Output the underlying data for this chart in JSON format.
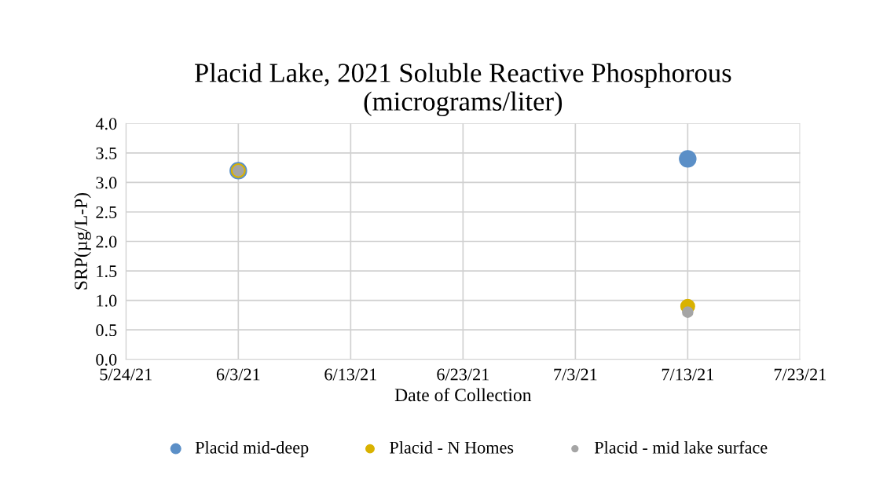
{
  "chart_data": {
    "type": "scatter",
    "title": "Placid Lake, 2021 Soluble Reactive Phosphorous\n(micrograms/liter)",
    "xlabel": "Date of Collection",
    "ylabel": "SRP(µg/L-P)",
    "series": [
      {
        "name": "Placid mid-deep",
        "color": "#5b8fc7",
        "x": [
          "2021-06-03",
          "2021-07-13"
        ],
        "values": [
          3.2,
          3.4
        ]
      },
      {
        "name": "Placid - N Homes",
        "color": "#d9b200",
        "x": [
          "2021-06-03",
          "2021-07-13"
        ],
        "values": [
          3.2,
          0.9
        ]
      },
      {
        "name": "Placid - mid lake surface",
        "color": "#a5a5a5",
        "x": [
          "2021-06-03",
          "2021-07-13"
        ],
        "values": [
          3.2,
          0.8
        ]
      }
    ],
    "xlim": [
      "2021-05-24",
      "2021-07-23"
    ],
    "xticks": [
      {
        "value": "2021-05-24",
        "label": "5/24/21"
      },
      {
        "value": "2021-06-03",
        "label": "6/3/21"
      },
      {
        "value": "2021-06-13",
        "label": "6/13/21"
      },
      {
        "value": "2021-06-23",
        "label": "6/23/21"
      },
      {
        "value": "2021-07-03",
        "label": "7/3/21"
      },
      {
        "value": "2021-07-13",
        "label": "7/13/21"
      },
      {
        "value": "2021-07-23",
        "label": "7/23/21"
      }
    ],
    "ylim": [
      0,
      4
    ],
    "yticks": [
      {
        "value": 0,
        "label": "0.0"
      },
      {
        "value": 0.5,
        "label": "0.5"
      },
      {
        "value": 1,
        "label": "1.0"
      },
      {
        "value": 1.5,
        "label": "1.5"
      },
      {
        "value": 2,
        "label": "2.0"
      },
      {
        "value": 2.5,
        "label": "2.5"
      },
      {
        "value": 3,
        "label": "3.0"
      },
      {
        "value": 3.5,
        "label": "3.5"
      },
      {
        "value": 4,
        "label": "4.0"
      }
    ],
    "grid": true,
    "legend": "bottom",
    "marker": "circle"
  }
}
